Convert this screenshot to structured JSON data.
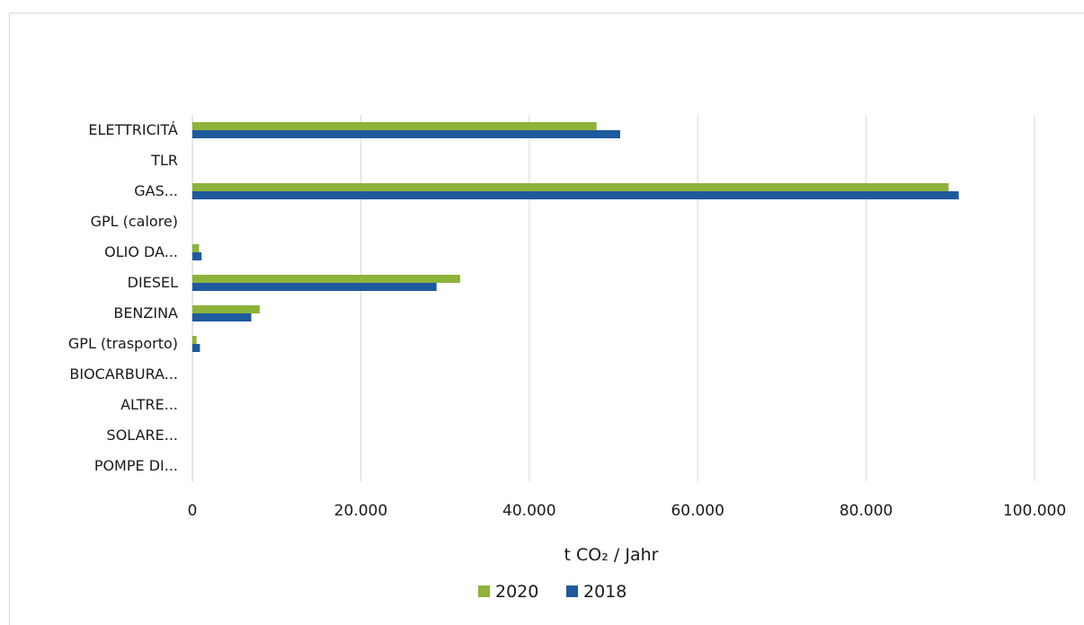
{
  "chart_data": {
    "type": "bar",
    "orientation": "horizontal",
    "categories": [
      "ELETTRICITÁ",
      "TLR",
      "GAS...",
      "GPL (calore)",
      "OLIO DA...",
      "DIESEL",
      "BENZINA",
      "GPL (trasporto)",
      "BIOCARBURA...",
      "ALTRE...",
      "SOLARE...",
      "POMPE DI..."
    ],
    "series": [
      {
        "name": "2020",
        "color": "#8db33a",
        "values": [
          48000,
          0,
          89800,
          0,
          800,
          31800,
          8000,
          500,
          0,
          0,
          0,
          0
        ]
      },
      {
        "name": "2018",
        "color": "#1f5a9e",
        "values": [
          50800,
          0,
          91000,
          0,
          1100,
          29000,
          7000,
          900,
          0,
          0,
          0,
          0
        ]
      }
    ],
    "xlim": [
      0,
      100000
    ],
    "xticks": [
      0,
      20000,
      40000,
      60000,
      80000,
      100000
    ],
    "xtick_labels": [
      "0",
      "20.000",
      "40.000",
      "60.000",
      "80.000",
      "100.000"
    ],
    "xlabel": "t CO₂ / Jahr",
    "grid": "vertical",
    "legend": "bottom"
  }
}
